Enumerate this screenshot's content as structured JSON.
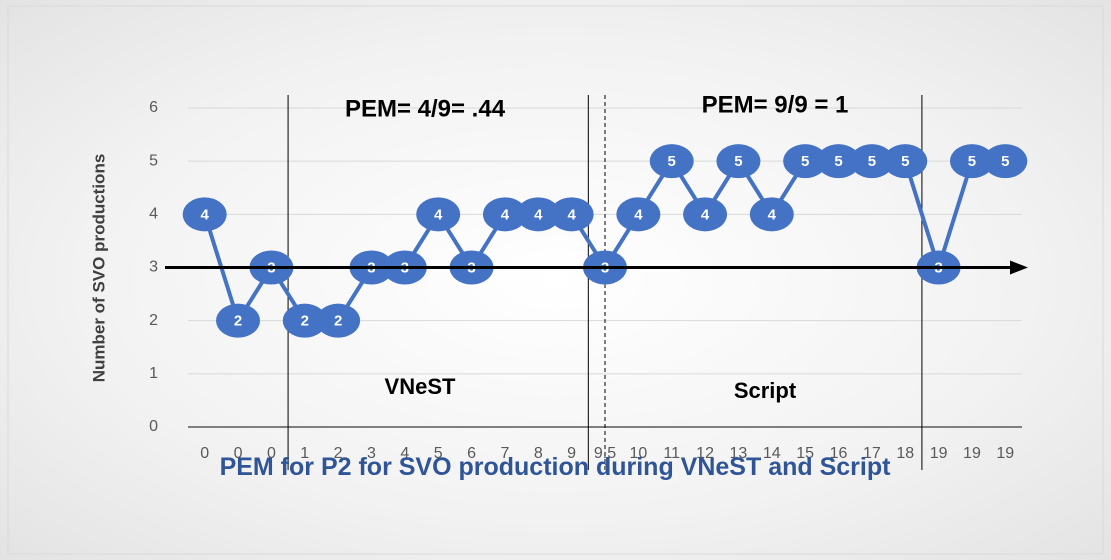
{
  "chart_data": {
    "type": "line",
    "title": "PEM for P2 for SVO production during VNeST and Script",
    "y_label": "Number of SVO productions",
    "categories": [
      "0",
      "0",
      "0",
      "1",
      "2",
      "3",
      "4",
      "5",
      "6",
      "7",
      "8",
      "9",
      "9.5",
      "10",
      "11",
      "12",
      "13",
      "14",
      "15",
      "16",
      "17",
      "18",
      "19",
      "19",
      "19"
    ],
    "series": [
      {
        "name": "SVO productions",
        "color": "#4472c4",
        "values": [
          4,
          2,
          3,
          2,
          2,
          3,
          3,
          4,
          3,
          4,
          4,
          4,
          3,
          4,
          5,
          4,
          5,
          4,
          5,
          5,
          5,
          5,
          3,
          5,
          5
        ]
      }
    ],
    "annotations": [
      "PEM= 4/9= .44",
      "PEM= 9/9 = 1",
      "VNeST",
      "Script"
    ],
    "reference_line": 3,
    "ylim": [
      0,
      6
    ],
    "yticks": [
      0,
      1,
      2,
      3,
      4,
      5,
      6
    ],
    "grid": true
  }
}
